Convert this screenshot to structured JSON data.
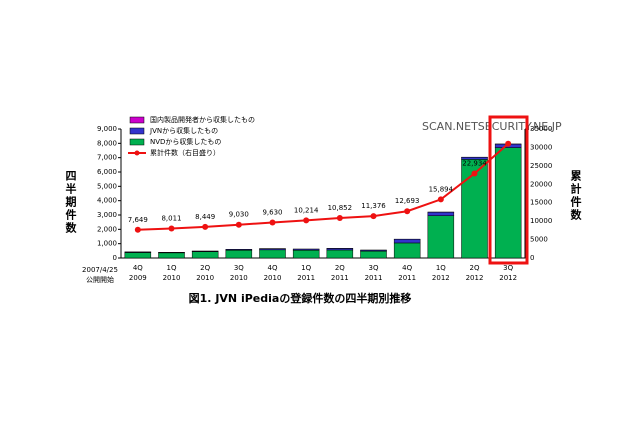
{
  "chart_data": {
    "type": "bar",
    "title": "図1. JVN iPediaの登録件数の四半期別推移",
    "ylabel": "四半期件数",
    "y2label": "累計件数",
    "watermark": "SCAN.NETSECURITY.NE.JP",
    "annotation": [
      "2007/4/25",
      "公開開始"
    ],
    "categories": [
      [
        "4Q",
        "2009"
      ],
      [
        "1Q",
        "2010"
      ],
      [
        "2Q",
        "2010"
      ],
      [
        "3Q",
        "2010"
      ],
      [
        "4Q",
        "2010"
      ],
      [
        "1Q",
        "2011"
      ],
      [
        "2Q",
        "2011"
      ],
      [
        "3Q",
        "2011"
      ],
      [
        "4Q",
        "2011"
      ],
      [
        "1Q",
        "2012"
      ],
      [
        "2Q",
        "2012"
      ],
      [
        "3Q",
        "2012"
      ]
    ],
    "series": [
      {
        "name": "NVDから収集したもの",
        "color": "#00b050",
        "values": [
          380,
          360,
          440,
          540,
          570,
          540,
          560,
          480,
          1050,
          2950,
          6880,
          7700
        ]
      },
      {
        "name": "JVNから収集したもの",
        "color": "#3333cc",
        "values": [
          40,
          30,
          40,
          60,
          80,
          80,
          110,
          70,
          260,
          250,
          150,
          250
        ]
      },
      {
        "name": "国内製品開発者から収集したもの",
        "color": "#cc00cc",
        "values": [
          5,
          5,
          5,
          5,
          5,
          5,
          5,
          5,
          5,
          5,
          5,
          5
        ]
      },
      {
        "name": "累計件数（右目盛り）",
        "color": "#ee1111",
        "type": "line",
        "axis": "y2",
        "values": [
          7649,
          8011,
          8449,
          9030,
          9630,
          10214,
          10852,
          11376,
          12693,
          15894,
          22934,
          31000
        ],
        "value_labels": [
          "7,649",
          "8,011",
          "8,449",
          "9,030",
          "9,630",
          "10,214",
          "10,852",
          "11,376",
          "12,693",
          "15,894",
          "22,934",
          null
        ]
      }
    ],
    "ylim": [
      0,
      9000
    ],
    "yticks": [
      0,
      {
        "value": 1000,
        "label": "1,000"
      },
      {
        "value": 2000,
        "label": "2,000"
      },
      {
        "value": 3000,
        "label": "3,000"
      },
      {
        "value": 4000,
        "label": "4,000"
      },
      {
        "value": 5000,
        "label": "5,000"
      },
      {
        "value": 6000,
        "label": "6,000"
      },
      {
        "value": 7000,
        "label": "7,000"
      },
      {
        "value": 8000,
        "label": "8,000"
      },
      {
        "value": 9000,
        "label": "9,000"
      }
    ],
    "y2lim": [
      0,
      35000
    ],
    "y2ticks": [
      0,
      5000,
      10000,
      15000,
      20000,
      25000,
      30000,
      35000
    ],
    "legend": "top-left"
  }
}
